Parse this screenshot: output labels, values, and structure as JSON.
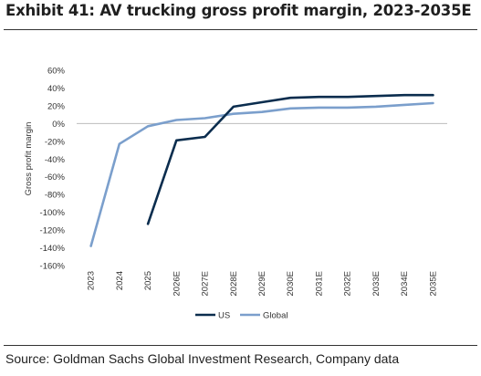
{
  "exhibit": {
    "title": "Exhibit 41: AV trucking gross profit margin, 2023-2035E",
    "source": "Source: Goldman Sachs Global Investment Research, Company data"
  },
  "chart_data": {
    "type": "line",
    "title": "Exhibit 41: AV trucking gross profit margin, 2023-2035E",
    "xlabel": "",
    "ylabel": "Gross profit margin",
    "x": [
      "2023",
      "2024",
      "2025",
      "2026E",
      "2027E",
      "2028E",
      "2029E",
      "2030E",
      "2031E",
      "2032E",
      "2033E",
      "2034E",
      "2035E"
    ],
    "ylim": [
      -160,
      60
    ],
    "yticks": [
      60,
      40,
      20,
      0,
      -20,
      -40,
      -60,
      -80,
      -100,
      -120,
      -140,
      -160
    ],
    "ytick_labels": [
      "60%",
      "40%",
      "20%",
      "0%",
      "-20%",
      "-40%",
      "-60%",
      "-80%",
      "-100%",
      "-120%",
      "-140%",
      "-160%"
    ],
    "unit": "%",
    "grid": false,
    "legend_position": "bottom",
    "series": [
      {
        "name": "US",
        "color": "#0b2d4e",
        "values": [
          null,
          null,
          -113,
          -19,
          -15,
          19,
          24,
          29,
          30,
          30,
          31,
          32,
          32
        ]
      },
      {
        "name": "Global",
        "color": "#7b9fcc",
        "values": [
          -138,
          -23,
          -3,
          4,
          6,
          11,
          13,
          17,
          18,
          18,
          19,
          21,
          23
        ]
      }
    ]
  }
}
